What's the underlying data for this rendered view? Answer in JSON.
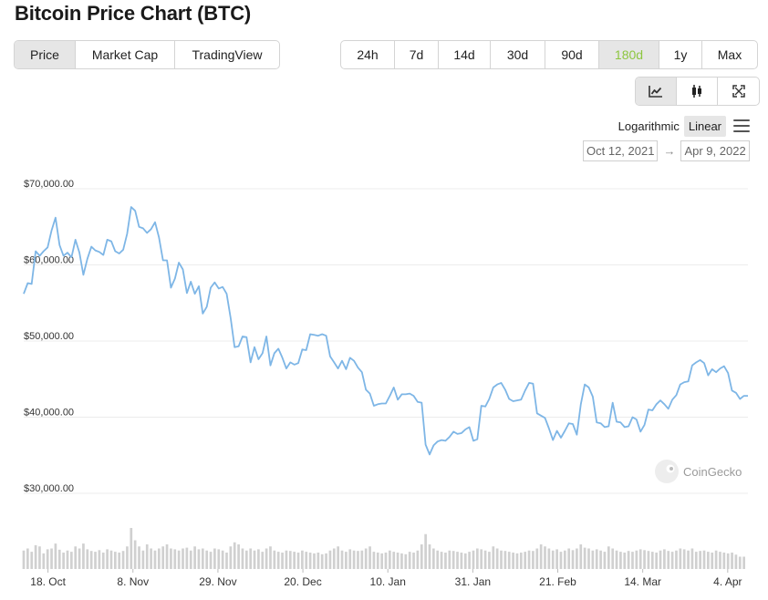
{
  "title": "Bitcoin Price Chart (BTC)",
  "tabs": [
    {
      "label": "Price",
      "active": true
    },
    {
      "label": "Market Cap",
      "active": false
    },
    {
      "label": "TradingView",
      "active": false
    }
  ],
  "ranges": [
    {
      "label": "24h"
    },
    {
      "label": "7d"
    },
    {
      "label": "14d"
    },
    {
      "label": "30d"
    },
    {
      "label": "90d"
    },
    {
      "label": "180d",
      "active": true
    },
    {
      "label": "1y"
    },
    {
      "label": "Max"
    }
  ],
  "view_buttons": [
    "line-chart-icon",
    "candlestick-icon",
    "fullscreen-icon"
  ],
  "scale": {
    "logarithmic": "Logarithmic",
    "linear": "Linear",
    "active": "linear"
  },
  "date_range": {
    "from": "Oct 12, 2021",
    "to": "Apr 9, 2022"
  },
  "watermark": "CoinGecko",
  "colors": {
    "line": "#7eb6e6",
    "volume": "#d0d0d0",
    "accent": "#8dc63f",
    "grid": "#ececec"
  },
  "chart_data": {
    "type": "line",
    "ylim": [
      30000,
      70000
    ],
    "y_ticks": [
      70000,
      60000,
      50000,
      40000,
      30000
    ],
    "y_tick_labels": [
      "$70,000.00",
      "$60,000.00",
      "$50,000.00",
      "$40,000.00",
      "$30,000.00"
    ],
    "x_tick_labels": [
      "18. Oct",
      "8. Nov",
      "29. Nov",
      "20. Dec",
      "10. Jan",
      "31. Jan",
      "21. Feb",
      "14. Mar",
      "4. Apr"
    ],
    "x_tick_days": [
      6,
      27,
      48,
      69,
      90,
      111,
      132,
      153,
      174
    ],
    "days_total": 179,
    "values": [
      56200,
      57600,
      57500,
      61800,
      61200,
      61800,
      62300,
      64500,
      66200,
      62600,
      61200,
      61600,
      61000,
      63300,
      61600,
      58700,
      60800,
      62400,
      61900,
      61700,
      61300,
      63300,
      63100,
      61800,
      61500,
      62000,
      64100,
      67600,
      67100,
      65000,
      64800,
      64200,
      64700,
      65600,
      63600,
      60600,
      60600,
      57000,
      58200,
      60300,
      59400,
      56300,
      57800,
      56200,
      57200,
      53600,
      54500,
      57000,
      57700,
      56900,
      57100,
      56200,
      53000,
      49200,
      49300,
      50600,
      50500,
      47200,
      49200,
      47600,
      48400,
      50600,
      46800,
      48400,
      49000,
      47800,
      46400,
      47200,
      46900,
      47100,
      48900,
      48800,
      50900,
      50800,
      50700,
      50900,
      50700,
      48000,
      47200,
      46400,
      47400,
      46300,
      47800,
      47400,
      46500,
      45900,
      43600,
      43100,
      41500,
      41700,
      41800,
      41800,
      42800,
      43900,
      42300,
      43000,
      43000,
      43100,
      42800,
      42000,
      41900,
      36400,
      35100,
      36300,
      36800,
      37000,
      36900,
      37400,
      38100,
      37800,
      37900,
      38400,
      38700,
      36900,
      37100,
      41500,
      41400,
      42400,
      43900,
      44300,
      44500,
      43600,
      42400,
      42100,
      42200,
      42300,
      43500,
      44500,
      44400,
      40500,
      40200,
      39900,
      38500,
      37000,
      38200,
      37300,
      38200,
      39200,
      39100,
      37700,
      41700,
      44300,
      43900,
      42700,
      39300,
      39200,
      38700,
      38800,
      41900,
      39400,
      39300,
      38700,
      38800,
      40000,
      39700,
      38100,
      39000,
      41000,
      40900,
      41700,
      42200,
      41700,
      41100,
      42300,
      42900,
      44300,
      44600,
      44700,
      46800,
      47200,
      47500,
      47100,
      45500,
      46300,
      45900,
      46400,
      46700,
      45800,
      43500,
      43200,
      42400,
      42800,
      42800
    ],
    "volume_relative": [
      0.45,
      0.5,
      0.42,
      0.58,
      0.55,
      0.38,
      0.48,
      0.5,
      0.62,
      0.47,
      0.4,
      0.45,
      0.42,
      0.55,
      0.5,
      0.62,
      0.48,
      0.44,
      0.42,
      0.46,
      0.4,
      0.48,
      0.45,
      0.42,
      0.4,
      0.44,
      0.55,
      1.0,
      0.7,
      0.55,
      0.45,
      0.6,
      0.5,
      0.45,
      0.5,
      0.55,
      0.6,
      0.5,
      0.48,
      0.45,
      0.5,
      0.52,
      0.45,
      0.55,
      0.48,
      0.5,
      0.45,
      0.42,
      0.5,
      0.48,
      0.45,
      0.4,
      0.55,
      0.65,
      0.6,
      0.5,
      0.45,
      0.5,
      0.45,
      0.48,
      0.42,
      0.5,
      0.55,
      0.45,
      0.42,
      0.4,
      0.45,
      0.44,
      0.42,
      0.4,
      0.45,
      0.42,
      0.4,
      0.38,
      0.4,
      0.36,
      0.38,
      0.45,
      0.5,
      0.55,
      0.45,
      0.42,
      0.48,
      0.45,
      0.44,
      0.45,
      0.5,
      0.55,
      0.42,
      0.4,
      0.38,
      0.4,
      0.45,
      0.42,
      0.4,
      0.38,
      0.36,
      0.42,
      0.4,
      0.45,
      0.6,
      0.85,
      0.6,
      0.5,
      0.45,
      0.42,
      0.4,
      0.45,
      0.44,
      0.42,
      0.4,
      0.38,
      0.42,
      0.45,
      0.5,
      0.48,
      0.45,
      0.42,
      0.55,
      0.5,
      0.45,
      0.44,
      0.42,
      0.4,
      0.38,
      0.4,
      0.42,
      0.45,
      0.44,
      0.5,
      0.6,
      0.55,
      0.5,
      0.45,
      0.48,
      0.42,
      0.45,
      0.5,
      0.46,
      0.5,
      0.6,
      0.52,
      0.5,
      0.45,
      0.48,
      0.45,
      0.42,
      0.55,
      0.5,
      0.45,
      0.42,
      0.4,
      0.44,
      0.42,
      0.45,
      0.48,
      0.46,
      0.44,
      0.42,
      0.4,
      0.45,
      0.48,
      0.44,
      0.42,
      0.45,
      0.5,
      0.48,
      0.45,
      0.5,
      0.42,
      0.44,
      0.45,
      0.42,
      0.4,
      0.45,
      0.42,
      0.4,
      0.38,
      0.4,
      0.35,
      0.3,
      0.3
    ]
  }
}
